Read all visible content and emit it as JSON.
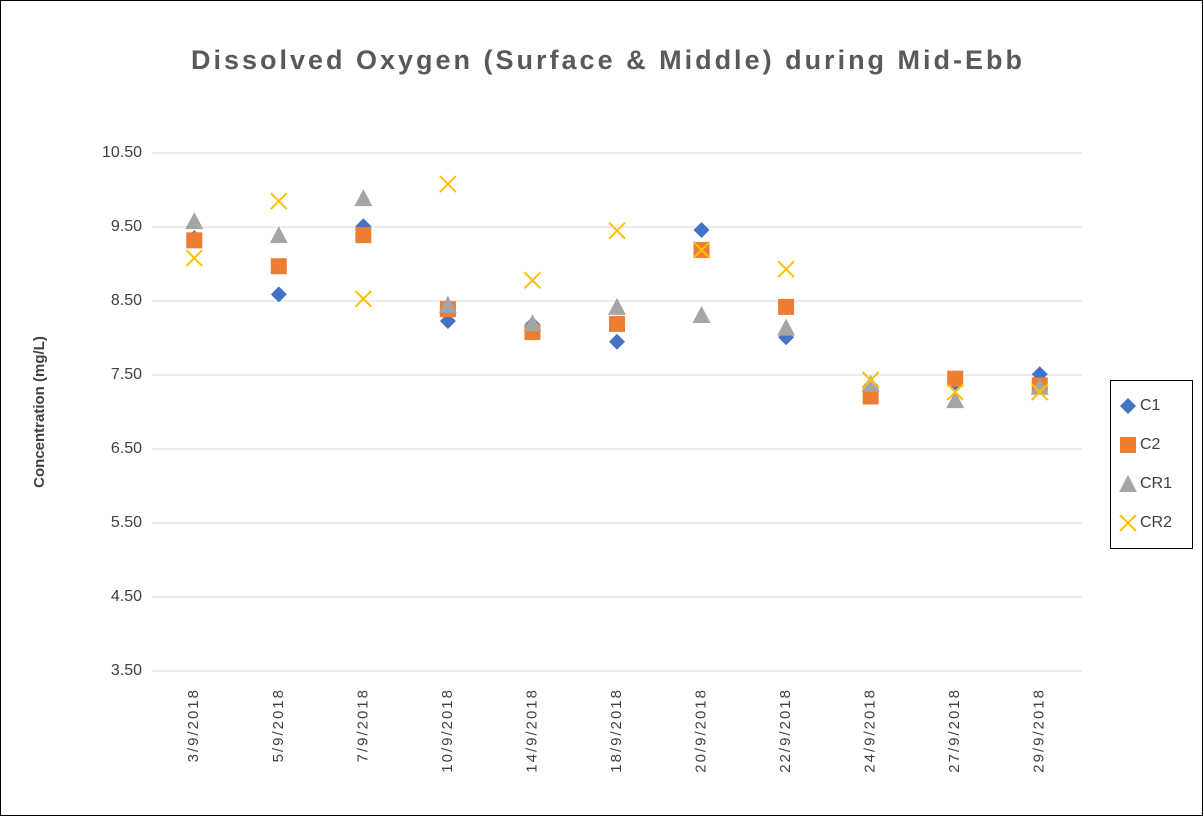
{
  "chart_data": {
    "type": "scatter",
    "title": "Dissolved Oxygen (Surface & Middle) during Mid-Ebb",
    "y_label": "Concentration (mg/L)",
    "categories": [
      "3/9/2018",
      "5/9/2018",
      "7/9/2018",
      "10/9/2018",
      "14/9/2018",
      "18/9/2018",
      "20/9/2018",
      "22/9/2018",
      "24/9/2018",
      "27/9/2018",
      "29/9/2018"
    ],
    "series": [
      {
        "name": "C1",
        "color": "#4472c4",
        "marker": "diamond",
        "values": [
          9.35,
          8.59,
          9.51,
          8.23,
          8.18,
          7.95,
          9.46,
          8.01,
          7.35,
          7.4,
          7.51
        ]
      },
      {
        "name": "C2",
        "color": "#ed7d31",
        "marker": "square",
        "values": [
          9.32,
          8.97,
          9.39,
          8.39,
          8.08,
          8.19,
          9.19,
          8.42,
          7.21,
          7.45,
          7.36
        ]
      },
      {
        "name": "CR1",
        "color": "#a5a5a5",
        "marker": "triangle",
        "values": [
          9.58,
          9.39,
          9.89,
          8.45,
          8.2,
          8.42,
          8.31,
          8.14,
          7.38,
          7.16,
          7.34
        ]
      },
      {
        "name": "CR2",
        "color": "#ffc000",
        "marker": "x",
        "values": [
          9.08,
          9.85,
          8.53,
          10.08,
          8.78,
          9.45,
          9.19,
          8.93,
          7.43,
          7.27,
          7.27
        ]
      }
    ],
    "ylim": [
      3.5,
      10.5
    ],
    "yticks": [
      {
        "value": 3.5,
        "label": "3.50"
      },
      {
        "value": 4.5,
        "label": "4.50"
      },
      {
        "value": 5.5,
        "label": "5.50"
      },
      {
        "value": 6.5,
        "label": "6.50"
      },
      {
        "value": 7.5,
        "label": "7.50"
      },
      {
        "value": 8.5,
        "label": "8.50"
      },
      {
        "value": 9.5,
        "label": "9.50"
      },
      {
        "value": 10.5,
        "label": "10.50"
      }
    ],
    "grid": true,
    "legend": "right"
  }
}
